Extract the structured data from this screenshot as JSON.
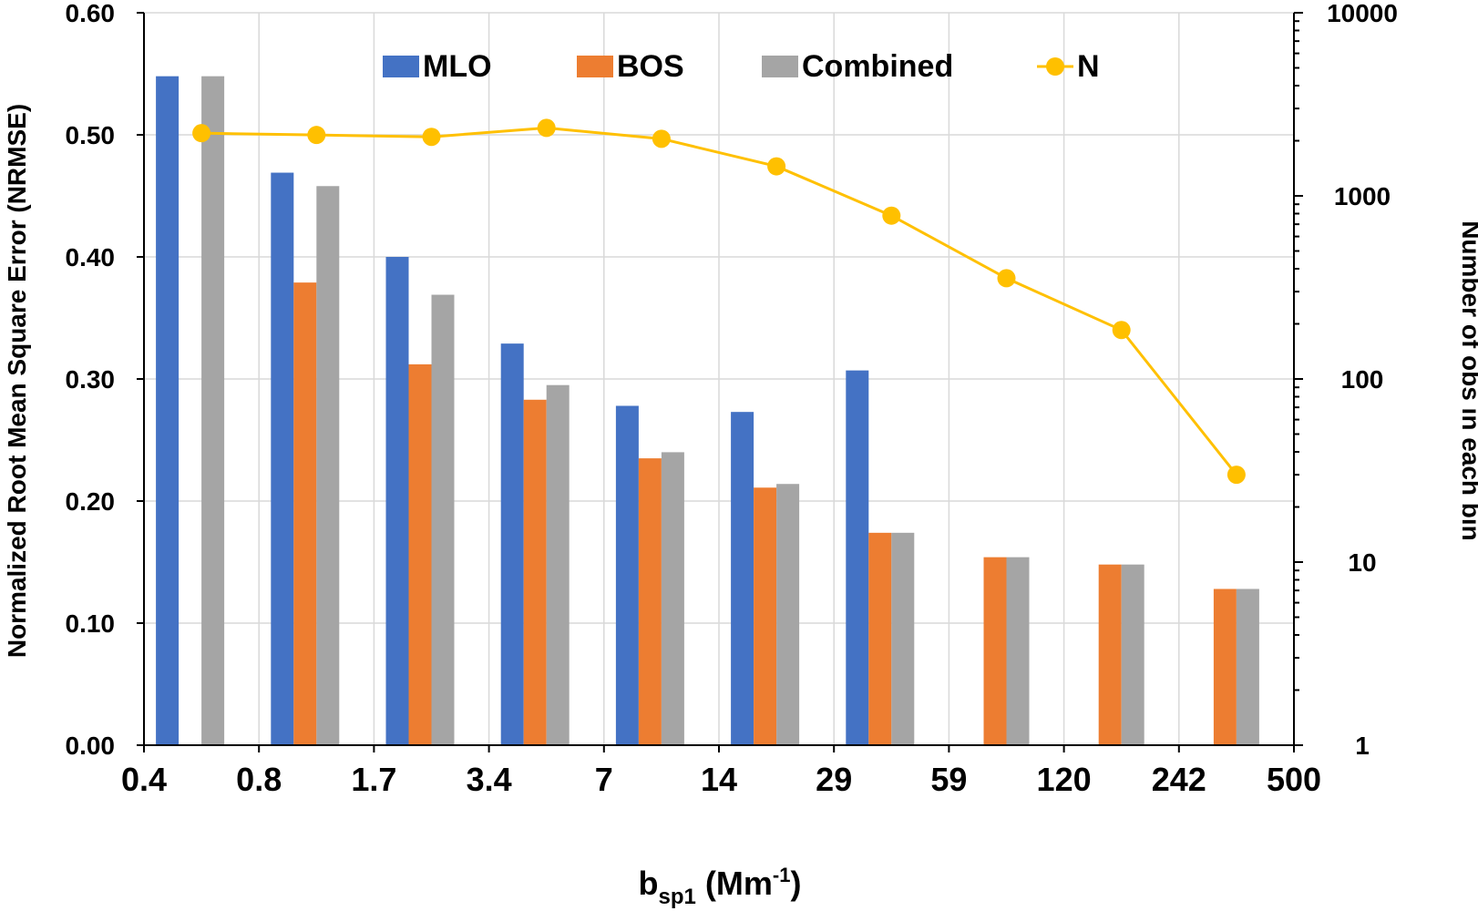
{
  "chart_data": {
    "type": "bar",
    "title": "",
    "xlabel": {
      "base": "b",
      "subscript": "sp1",
      "unit_prefix": " (Mm",
      "unit_superscript": "-1",
      "unit_suffix": ")"
    },
    "ylabel": "Normalized Root Mean Square Error (NRMSE)",
    "y2label": "Number of obs in each bin",
    "x_tick_labels": [
      "0.4",
      "0.8",
      "1.7",
      "3.4",
      "7",
      "14",
      "29",
      "59",
      "120",
      "242",
      "500"
    ],
    "ylim": [
      0,
      0.6
    ],
    "y_ticks": [
      "0.00",
      "0.10",
      "0.20",
      "0.30",
      "0.40",
      "0.50",
      "0.60"
    ],
    "y2lim": [
      1,
      10000
    ],
    "y2_scale": "log",
    "y2_ticks": [
      "1",
      "10",
      "100",
      "1000",
      "10000"
    ],
    "grid": true,
    "legend_position": "top",
    "series": [
      {
        "name": "MLO",
        "color": "#4472C4",
        "values": [
          0.548,
          0.469,
          0.4,
          0.329,
          0.278,
          0.273,
          0.307,
          null,
          null,
          null
        ]
      },
      {
        "name": "BOS",
        "color": "#ED7D31",
        "values": [
          null,
          0.379,
          0.312,
          0.283,
          0.235,
          0.211,
          0.174,
          0.154,
          0.148,
          0.128
        ]
      },
      {
        "name": "Combined",
        "color": "#A5A5A5",
        "values": [
          0.548,
          0.458,
          0.369,
          0.295,
          0.24,
          0.214,
          0.174,
          0.154,
          0.148,
          0.128
        ]
      }
    ],
    "line_series": {
      "name": "N",
      "color": "#FFC000",
      "axis": "secondary",
      "values": [
        2200,
        2150,
        2100,
        2350,
        2050,
        1450,
        780,
        355,
        185,
        30
      ]
    }
  }
}
